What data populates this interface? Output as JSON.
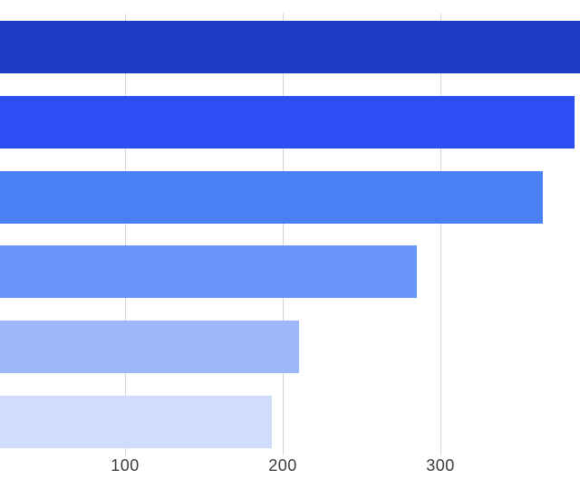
{
  "chart_data": {
    "type": "bar",
    "orientation": "horizontal",
    "title": "",
    "xlabel": "",
    "ylabel": "",
    "categories": [
      null,
      null,
      null,
      null,
      null,
      null
    ],
    "values": [
      400,
      385,
      365,
      285,
      210,
      193
    ],
    "series_note": "six horizontal bars sorted descending; category labels are cropped out of the visible area on the left; top bar is clipped by the right edge of the image (value >= 389, estimated 400)",
    "x_ticks": [
      {
        "value": 100,
        "label": "100"
      },
      {
        "value": 200,
        "label": "200"
      },
      {
        "value": 300,
        "label": "300"
      }
    ],
    "x_visible_range": [
      20.4,
      388.6
    ],
    "grid": "vertical gridlines only, behind bars",
    "legend": "none",
    "colors": {
      "bar_palette": [
        "#1f3bc6",
        "#2c4ef2",
        "#4a80f7",
        "#6a96fa",
        "#9cb8fa",
        "#cfdcfb"
      ],
      "gridline": "#d4d4d4",
      "tick_label": "#3a3a3a",
      "background": "#ffffff"
    }
  }
}
